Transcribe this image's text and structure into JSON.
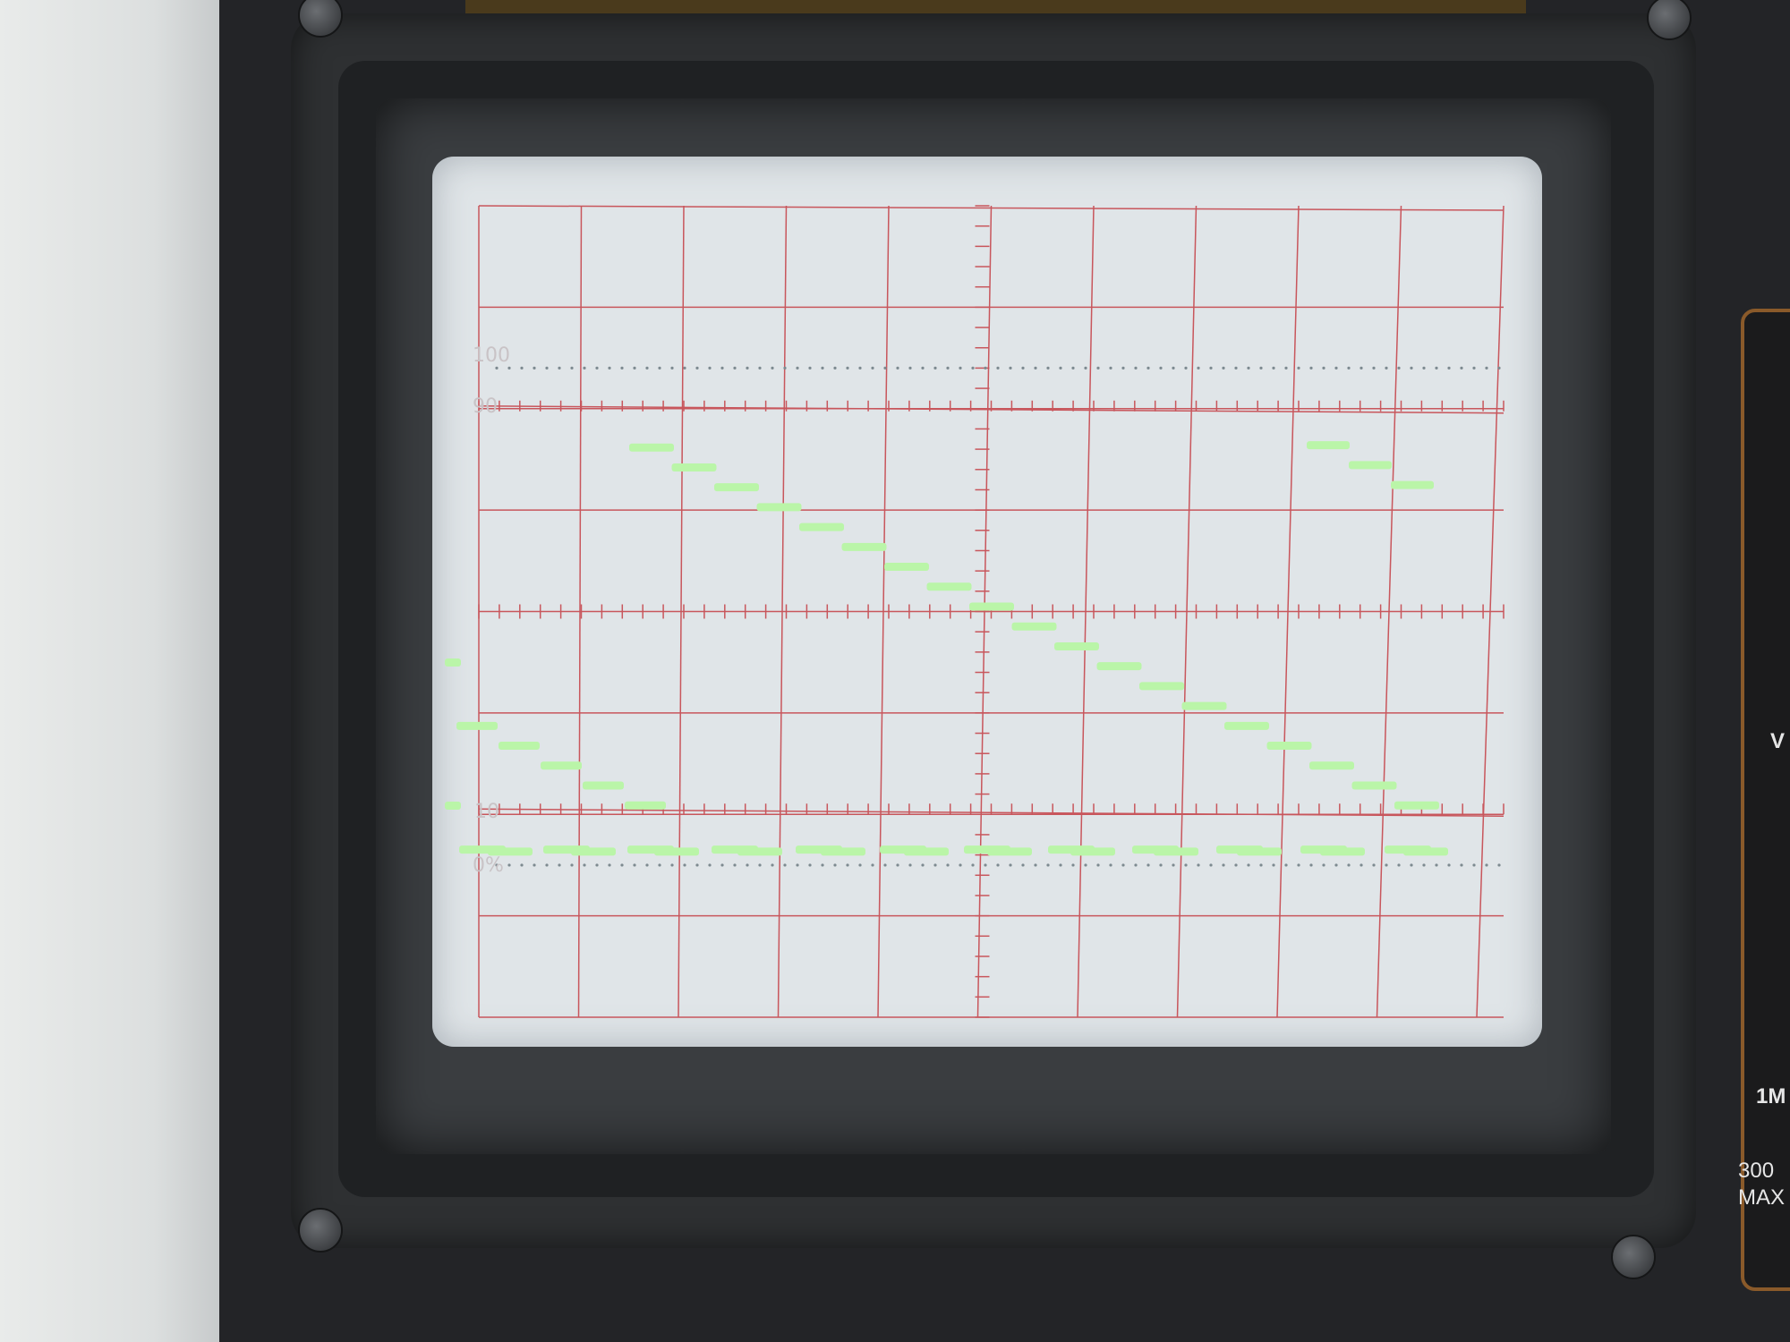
{
  "screen": {
    "label_100": "100",
    "label_90": "90",
    "label_10": "10",
    "label_0": "0%"
  },
  "side_panel": {
    "text_1": "V",
    "text_2": "1M",
    "text_3": "300",
    "text_4": "MAX"
  },
  "colors": {
    "grid": "#c8565c",
    "trace": "#baf5a8",
    "screen": "#e0e5e8",
    "bezel": "#232427"
  },
  "trace_levels": {
    "high_staircase": [
      85,
      81,
      77,
      73,
      69,
      65,
      61,
      57,
      53,
      49,
      45,
      41,
      37,
      33,
      29,
      25,
      21,
      17,
      13
    ],
    "top_right": [
      86,
      82,
      78
    ],
    "mid_line": 10,
    "low_line": 5
  }
}
